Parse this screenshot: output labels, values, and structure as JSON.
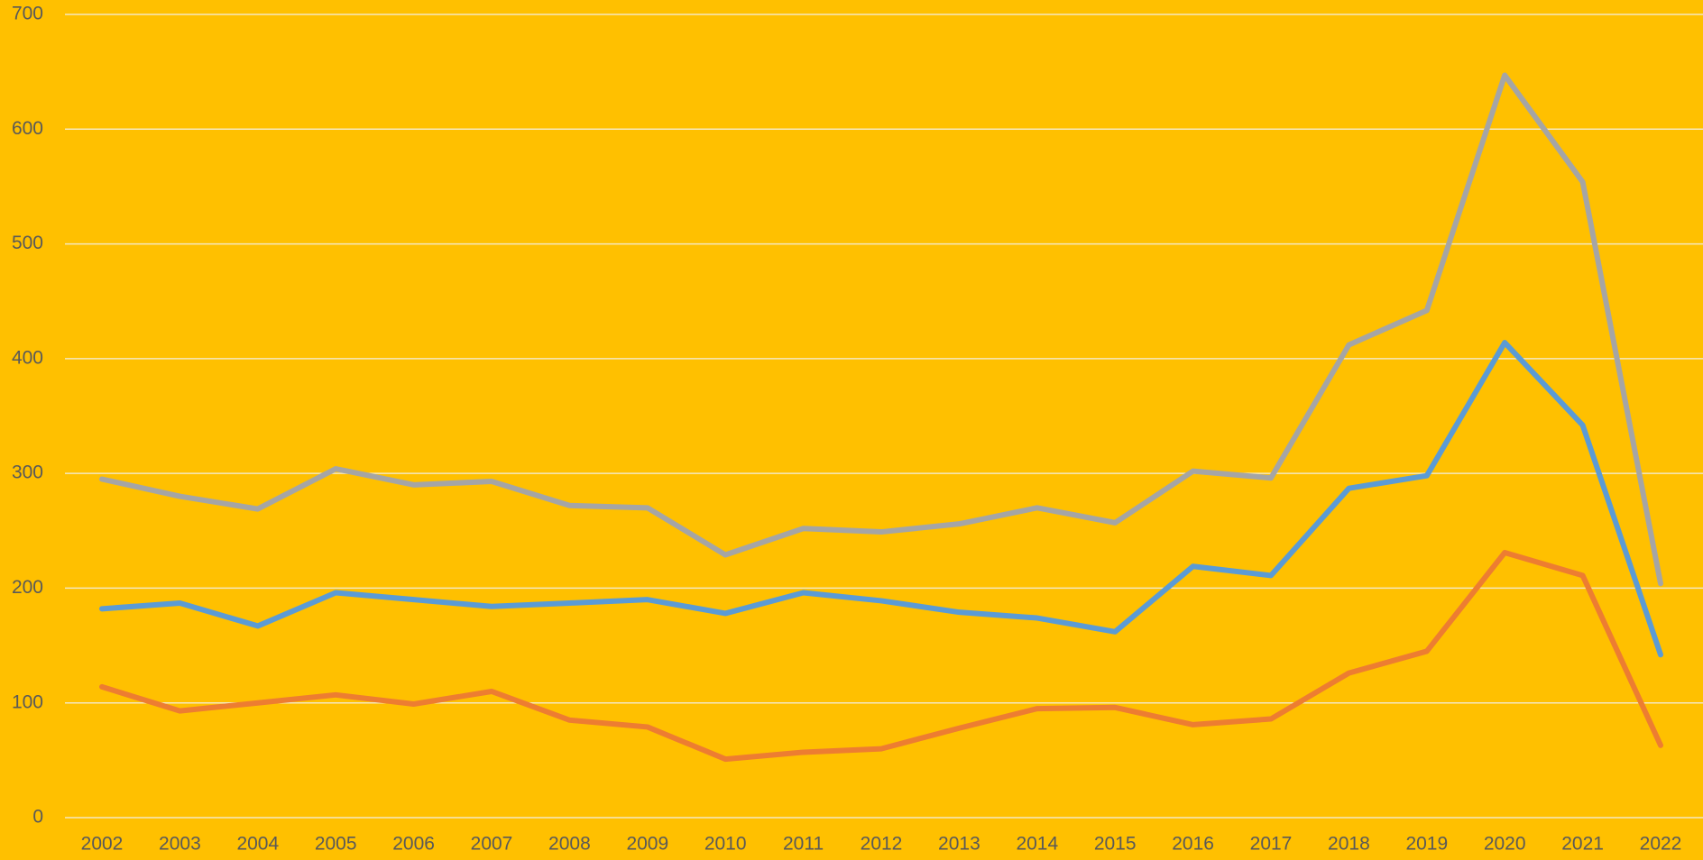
{
  "chart_data": {
    "type": "line",
    "categories": [
      "2002",
      "2003",
      "2004",
      "2005",
      "2006",
      "2007",
      "2008",
      "2009",
      "2010",
      "2011",
      "2012",
      "2013",
      "2014",
      "2015",
      "2016",
      "2017",
      "2018",
      "2019",
      "2020",
      "2021",
      "2022"
    ],
    "series": [
      {
        "color": "#a5a5a5",
        "values": [
          295,
          280,
          269,
          304,
          290,
          293,
          272,
          270,
          229,
          252,
          249,
          256,
          270,
          257,
          302,
          296,
          412,
          442,
          647,
          554,
          204
        ]
      },
      {
        "color": "#5b9bd5",
        "values": [
          182,
          187,
          167,
          196,
          190,
          184,
          187,
          190,
          178,
          196,
          189,
          179,
          174,
          162,
          219,
          211,
          287,
          298,
          414,
          342,
          142
        ]
      },
      {
        "color": "#ed7d31",
        "values": [
          114,
          93,
          100,
          107,
          99,
          110,
          85,
          79,
          51,
          57,
          60,
          78,
          95,
          96,
          81,
          86,
          126,
          145,
          231,
          211,
          63
        ]
      }
    ],
    "ylim": [
      0,
      700
    ],
    "yticks": [
      0,
      100,
      200,
      300,
      400,
      500,
      600,
      700
    ],
    "grid": true,
    "background": "#ffc000"
  }
}
